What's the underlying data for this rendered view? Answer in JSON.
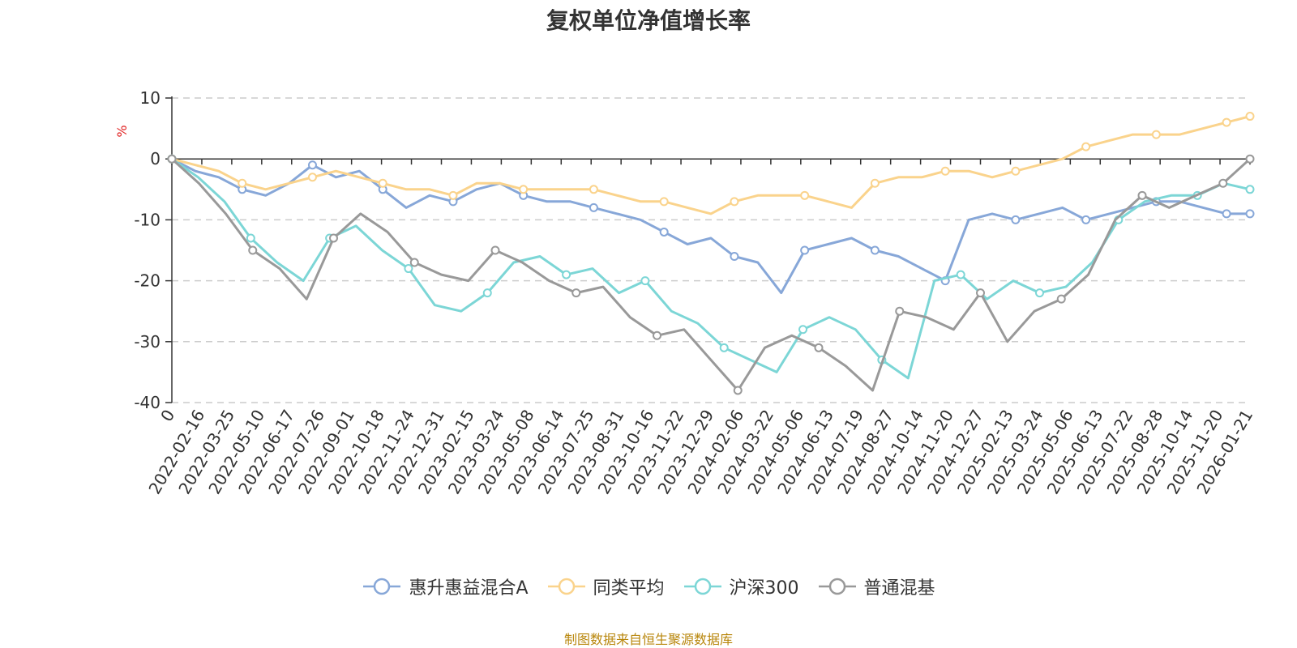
{
  "chart_data": {
    "type": "line",
    "title": "复权单位净值增长率",
    "ylabel": "%",
    "ylim": [
      -40,
      10
    ],
    "yticks": [
      10,
      0,
      -10,
      -20,
      -30,
      -40
    ],
    "xtick_labels": [
      "0",
      "2022-02-16",
      "2022-03-25",
      "2022-05-10",
      "2022-06-17",
      "2022-07-26",
      "2022-09-01",
      "2022-10-18",
      "2022-11-24",
      "2022-12-31",
      "2023-02-15",
      "2023-03-24",
      "2023-05-08",
      "2023-06-14",
      "2023-07-25",
      "2023-08-31",
      "2023-10-16",
      "2023-11-22",
      "2023-12-29",
      "2024-02-06",
      "2024-03-22",
      "2024-05-06",
      "2024-06-13",
      "2024-07-19",
      "2024-08-27",
      "2024-10-14",
      "2024-11-20",
      "2024-12-27",
      "2025-02-13",
      "2025-03-24",
      "2025-05-06",
      "2025-06-13",
      "2025-07-22",
      "2025-08-28",
      "2025-10-14",
      "2025-11-20",
      "2026-01-21"
    ],
    "grid": true,
    "legend_position": "bottom-center",
    "series": [
      {
        "name": "惠升惠益混合A",
        "color": "#87a7d8",
        "values": [
          0,
          -2,
          -3,
          -5,
          -6,
          -4,
          -1,
          -3,
          -2,
          -5,
          -8,
          -6,
          -7,
          -5,
          -4,
          -6,
          -7,
          -7,
          -8,
          -9,
          -10,
          -12,
          -14,
          -13,
          -16,
          -17,
          -22,
          -15,
          -14,
          -13,
          -15,
          -16,
          -18,
          -20,
          -10,
          -9,
          -10,
          -9,
          -8,
          -10,
          -9,
          -8,
          -7,
          -7,
          -8,
          -9,
          -9
        ]
      },
      {
        "name": "同类平均",
        "color": "#fad38c",
        "values": [
          0,
          -1,
          -2,
          -4,
          -5,
          -4,
          -3,
          -2,
          -3,
          -4,
          -5,
          -5,
          -6,
          -4,
          -4,
          -5,
          -5,
          -5,
          -5,
          -6,
          -7,
          -7,
          -8,
          -9,
          -7,
          -6,
          -6,
          -6,
          -7,
          -8,
          -4,
          -3,
          -3,
          -2,
          -2,
          -3,
          -2,
          -1,
          0,
          2,
          3,
          4,
          4,
          4,
          5,
          6,
          7
        ]
      },
      {
        "name": "沪深300",
        "color": "#7cd6d6",
        "values": [
          0,
          -3,
          -7,
          -13,
          -17,
          -20,
          -13,
          -11,
          -15,
          -18,
          -24,
          -25,
          -22,
          -17,
          -16,
          -19,
          -18,
          -22,
          -20,
          -25,
          -27,
          -31,
          -33,
          -35,
          -28,
          -26,
          -28,
          -33,
          -36,
          -20,
          -19,
          -23,
          -20,
          -22,
          -21,
          -17,
          -10,
          -7,
          -6,
          -6,
          -4,
          -5
        ]
      },
      {
        "name": "普通混基",
        "color": "#999999",
        "values": [
          0,
          -4,
          -9,
          -15,
          -18,
          -23,
          -13,
          -9,
          -12,
          -17,
          -19,
          -20,
          -15,
          -17,
          -20,
          -22,
          -21,
          -26,
          -29,
          -28,
          -33,
          -38,
          -31,
          -29,
          -31,
          -34,
          -38,
          -25,
          -26,
          -28,
          -22,
          -30,
          -25,
          -23,
          -19,
          -10,
          -6,
          -8,
          -6,
          -4,
          0
        ]
      }
    ]
  },
  "source_note": "制图数据来自恒生聚源数据库"
}
